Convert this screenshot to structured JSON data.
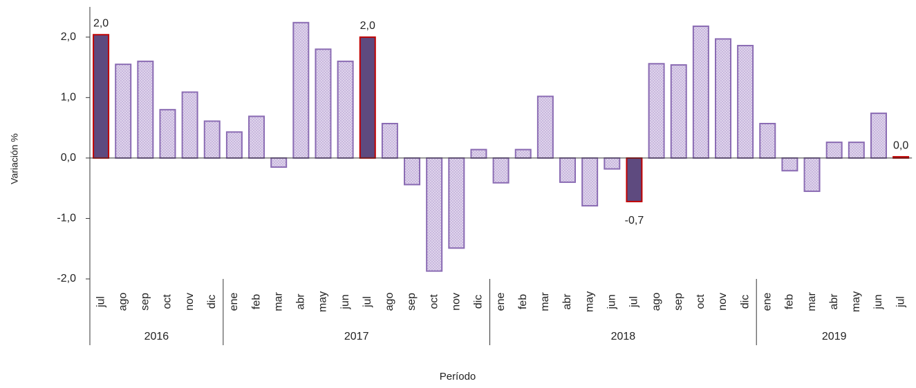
{
  "chart_data": {
    "type": "bar",
    "y_label": "Variación %",
    "x_label": "Período",
    "groups": [
      {
        "name": "2016",
        "categories": [
          "jul",
          "ago",
          "sep",
          "oct",
          "nov",
          "dic"
        ]
      },
      {
        "name": "2017",
        "categories": [
          "ene",
          "feb",
          "mar",
          "abr",
          "may",
          "jun",
          "jul",
          "ago",
          "sep",
          "oct",
          "nov",
          "dic"
        ]
      },
      {
        "name": "2018",
        "categories": [
          "ene",
          "feb",
          "mar",
          "abr",
          "may",
          "jun",
          "jul",
          "ago",
          "sep",
          "oct",
          "nov",
          "dic"
        ]
      },
      {
        "name": "2019",
        "categories": [
          "ene",
          "feb",
          "mar",
          "abr",
          "may",
          "jun",
          "jul"
        ]
      }
    ],
    "values": [
      2.04,
      1.55,
      1.6,
      0.8,
      1.09,
      0.61,
      0.43,
      0.69,
      -0.15,
      2.24,
      1.8,
      1.6,
      2.0,
      0.57,
      -0.44,
      -1.87,
      -1.49,
      0.14,
      -0.41,
      0.14,
      1.02,
      -0.4,
      -0.79,
      -0.18,
      -0.72,
      1.56,
      1.54,
      2.18,
      1.97,
      1.86,
      0.57,
      -0.21,
      -0.55,
      0.26,
      0.26,
      0.74,
      0.02
    ],
    "value_labels": [
      "2,0",
      null,
      null,
      null,
      null,
      null,
      null,
      null,
      null,
      null,
      null,
      null,
      "2,0",
      null,
      null,
      null,
      null,
      null,
      null,
      null,
      null,
      null,
      null,
      null,
      "-0,7",
      null,
      null,
      null,
      null,
      null,
      null,
      null,
      null,
      null,
      null,
      null,
      "0,0"
    ],
    "highlight": [
      0,
      12,
      24,
      36
    ],
    "color": "#c9b8de",
    "edge_color": "#8a6bb3",
    "highlight_color": "#5e4a7f",
    "highlight_edge_color": "#c00000",
    "ylim": [
      -2.0,
      2.5
    ],
    "yticks": [
      {
        "value": -2,
        "label": "-2,0"
      },
      {
        "value": -1,
        "label": "-1,0"
      },
      {
        "value": 0,
        "label": "0,0"
      },
      {
        "value": 1,
        "label": "1,0"
      },
      {
        "value": 2,
        "label": "2,0"
      }
    ]
  }
}
